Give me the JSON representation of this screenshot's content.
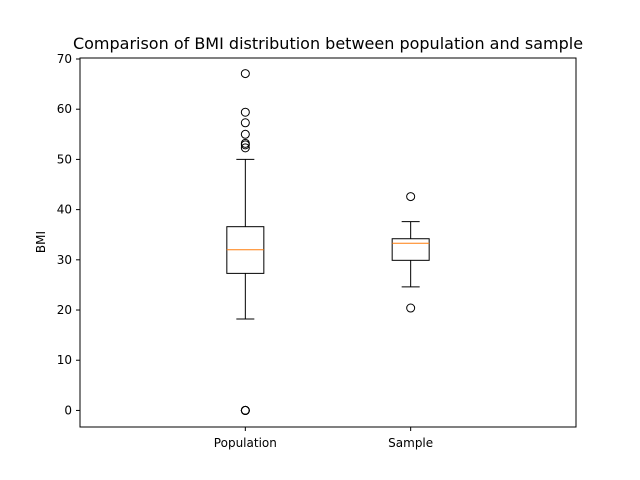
{
  "chart_data": {
    "type": "boxplot",
    "title": "Comparison of BMI distribution between population and sample",
    "xlabel": "",
    "ylabel": "BMI",
    "ylim": [
      -3.3,
      70.2
    ],
    "yticks": [
      0,
      10,
      20,
      30,
      40,
      50,
      60,
      70
    ],
    "grid": false,
    "categories": [
      "Population",
      "Sample"
    ],
    "boxes": [
      {
        "category": "Population",
        "whisker_low": 18.2,
        "q1": 27.3,
        "median": 32.0,
        "q3": 36.6,
        "whisker_high": 50.0,
        "outliers": [
          0,
          0,
          0,
          0,
          52.3,
          52.9,
          53.2,
          55.0,
          57.3,
          59.4,
          67.1
        ]
      },
      {
        "category": "Sample",
        "whisker_low": 24.6,
        "q1": 29.9,
        "median": 33.3,
        "q3": 34.2,
        "whisker_high": 37.6,
        "outliers": [
          20.4,
          42.6
        ]
      }
    ],
    "colors": {
      "box": "#000000",
      "median": "#ff7f0e",
      "outlier": "#000000"
    }
  }
}
